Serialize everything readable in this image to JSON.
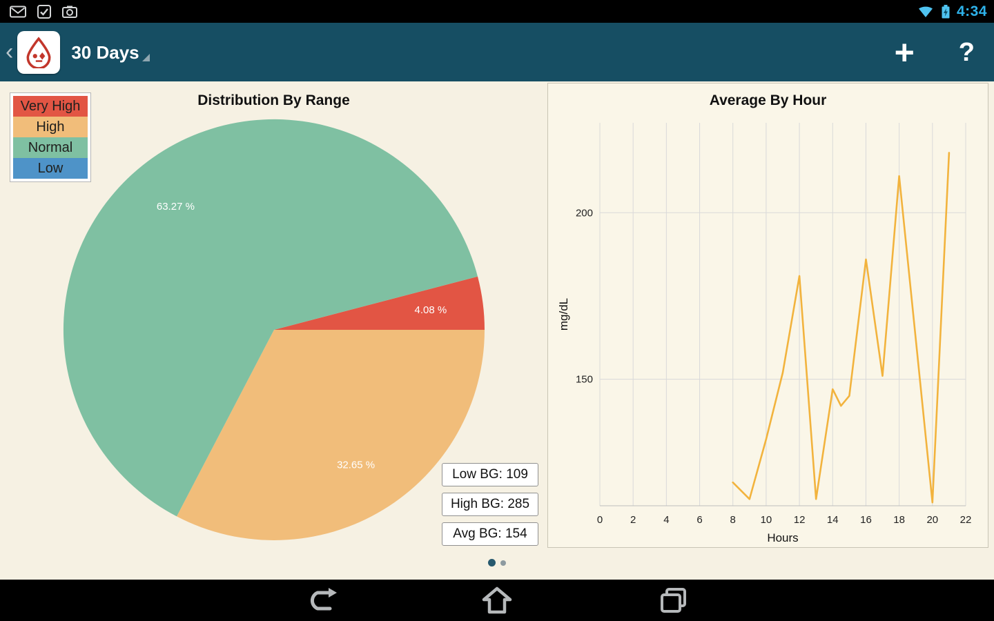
{
  "status_bar": {
    "time": "4:34"
  },
  "action_bar": {
    "back_glyph": "‹",
    "title": "30 Days",
    "add_label": "+",
    "help_label": "?"
  },
  "pie_panel": {
    "legend": [
      {
        "label": "Very High",
        "color": "#e25544"
      },
      {
        "label": "High",
        "color": "#f1bd7a"
      },
      {
        "label": "Normal",
        "color": "#7fc0a2"
      },
      {
        "label": "Low",
        "color": "#4e93c8"
      }
    ],
    "stats": [
      {
        "label": "Low BG: 109"
      },
      {
        "label": "High BG: 285"
      },
      {
        "label": "Avg BG: 154"
      }
    ]
  },
  "chart_data": [
    {
      "type": "pie",
      "title": "Distribution By Range",
      "start_angle": -14.69,
      "slices": [
        {
          "name": "Very High",
          "value": 4.08,
          "label": "4.08 %",
          "color": "#e25544"
        },
        {
          "name": "High",
          "value": 32.65,
          "label": "32.65 %",
          "color": "#f1bd7a"
        },
        {
          "name": "Normal",
          "value": 63.27,
          "label": "63.27 %",
          "color": "#7fc0a2"
        },
        {
          "name": "Low",
          "value": 0,
          "label": "",
          "color": "#4e93c8"
        }
      ]
    },
    {
      "type": "line",
      "title": "Average By Hour",
      "xlabel": "Hours",
      "ylabel": "mg/dL",
      "xticks": [
        0,
        2,
        4,
        6,
        8,
        10,
        12,
        14,
        16,
        18,
        20,
        22
      ],
      "yticks": [
        150,
        200
      ],
      "xlim": [
        0,
        22
      ],
      "ylim": [
        112,
        227
      ],
      "grid": true,
      "legend_position": "none",
      "line_color": "#f2b33d",
      "points": [
        [
          8,
          119
        ],
        [
          9,
          114
        ],
        [
          10,
          132
        ],
        [
          11,
          152
        ],
        [
          12,
          181
        ],
        [
          13,
          114
        ],
        [
          14,
          147
        ],
        [
          14.5,
          142
        ],
        [
          15,
          145
        ],
        [
          16,
          186
        ],
        [
          17,
          151
        ],
        [
          18,
          211
        ],
        [
          20,
          113
        ],
        [
          21,
          218
        ]
      ]
    }
  ],
  "pager": {
    "count": 2,
    "active": 0
  }
}
